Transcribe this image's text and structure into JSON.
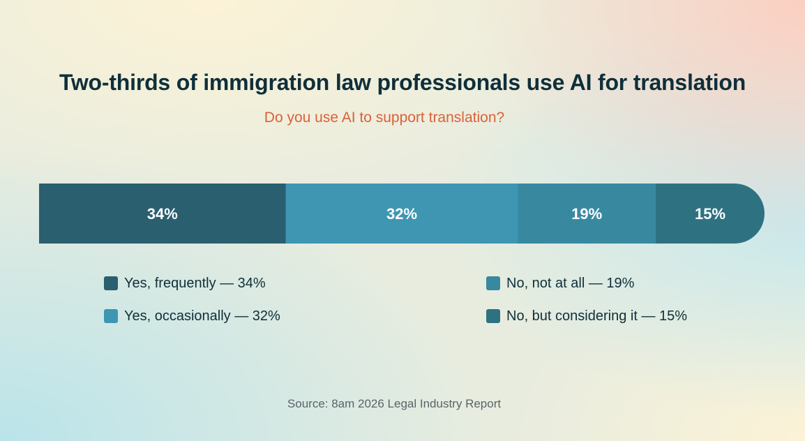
{
  "chart_data": {
    "type": "bar",
    "orientation": "horizontal-stacked-100",
    "title": "Two-thirds of immigration law professionals use AI for translation",
    "subtitle": "Do you use AI to support translation?",
    "unit": "%",
    "segments": [
      {
        "label": "Yes, frequently",
        "value": 34,
        "color": "#2a5f70",
        "display": "34%",
        "legend": "Yes, frequently — 34%"
      },
      {
        "label": "Yes, occasionally",
        "value": 32,
        "color": "#3f96b2",
        "display": "32%",
        "legend": "Yes, occasionally — 32%"
      },
      {
        "label": "No, not at all",
        "value": 19,
        "color": "#3889a0",
        "display": "19%",
        "legend": "No, not at all — 19%"
      },
      {
        "label": "No, but considering it",
        "value": 15,
        "color": "#2e7282",
        "display": "15%",
        "legend": "No, but considering it — 15%"
      }
    ],
    "legend_position": "bottom",
    "source": "Source: 8am 2026 Legal Industry Report"
  }
}
